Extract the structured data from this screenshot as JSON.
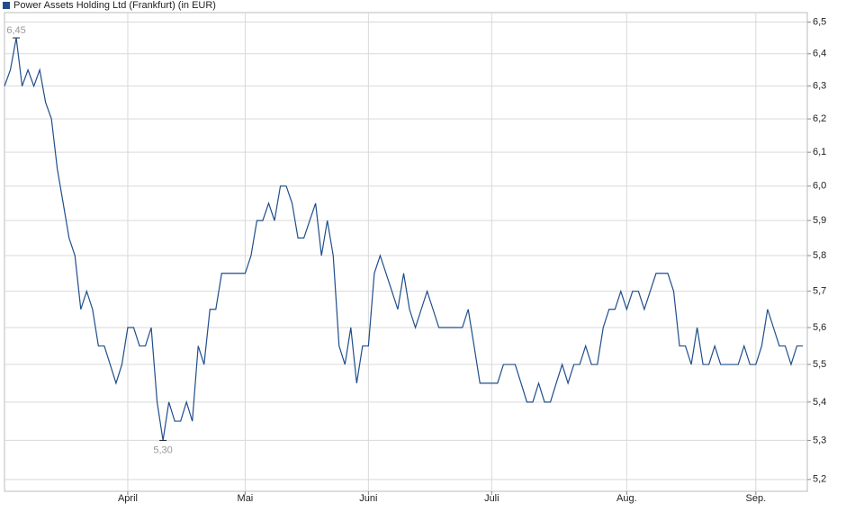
{
  "chart_data": {
    "type": "line",
    "log_scale": true,
    "grid": true,
    "legend": "top-left",
    "annotations": {
      "max": "6,45",
      "min": "5,30"
    },
    "ylim": [
      5.17,
      6.53
    ],
    "yticks": [
      {
        "value": 5.2,
        "label": "5,2"
      },
      {
        "value": 5.3,
        "label": "5,3"
      },
      {
        "value": 5.4,
        "label": "5,4"
      },
      {
        "value": 5.5,
        "label": "5,5"
      },
      {
        "value": 5.6,
        "label": "5,6"
      },
      {
        "value": 5.7,
        "label": "5,7"
      },
      {
        "value": 5.8,
        "label": "5,8"
      },
      {
        "value": 5.9,
        "label": "5,9"
      },
      {
        "value": 6.0,
        "label": "6,0"
      },
      {
        "value": 6.1,
        "label": "6,1"
      },
      {
        "value": 6.2,
        "label": "6,2"
      },
      {
        "value": 6.3,
        "label": "6,3"
      },
      {
        "value": 6.4,
        "label": "6,4"
      },
      {
        "value": 6.5,
        "label": "6,5"
      }
    ],
    "categories": [
      null,
      null,
      null,
      null,
      null,
      null,
      null,
      null,
      null,
      null,
      null,
      null,
      null,
      null,
      null,
      null,
      null,
      null,
      null,
      null,
      null,
      "April",
      null,
      null,
      null,
      null,
      null,
      null,
      null,
      null,
      null,
      null,
      null,
      null,
      null,
      null,
      null,
      null,
      null,
      null,
      null,
      "Mai",
      null,
      null,
      null,
      null,
      null,
      null,
      null,
      null,
      null,
      null,
      null,
      null,
      null,
      null,
      null,
      null,
      null,
      null,
      null,
      null,
      "Juni",
      null,
      null,
      null,
      null,
      null,
      null,
      null,
      null,
      null,
      null,
      null,
      null,
      null,
      null,
      null,
      null,
      null,
      null,
      null,
      null,
      "Juli",
      null,
      null,
      null,
      null,
      null,
      null,
      null,
      null,
      null,
      null,
      null,
      null,
      null,
      null,
      null,
      null,
      null,
      null,
      null,
      null,
      null,
      null,
      "Aug.",
      null,
      null,
      null,
      null,
      null,
      null,
      null,
      null,
      null,
      null,
      null,
      null,
      null,
      null,
      null,
      null,
      null,
      null,
      null,
      null,
      null,
      "Sep.",
      null,
      null,
      null,
      null,
      null,
      null,
      null,
      null
    ],
    "series": [
      {
        "name": "Power Assets Holding Ltd (Frankfurt) (in EUR)",
        "color": "#1f4e8c",
        "values": [
          6.3,
          6.35,
          6.45,
          6.3,
          6.35,
          6.3,
          6.35,
          6.25,
          6.2,
          6.05,
          5.95,
          5.85,
          5.8,
          5.65,
          5.7,
          5.65,
          5.55,
          5.55,
          5.5,
          5.45,
          5.5,
          5.6,
          5.6,
          5.55,
          5.55,
          5.6,
          5.4,
          5.3,
          5.4,
          5.35,
          5.35,
          5.4,
          5.35,
          5.55,
          5.5,
          5.65,
          5.65,
          5.75,
          5.75,
          5.75,
          5.75,
          5.75,
          5.8,
          5.9,
          5.9,
          5.95,
          5.9,
          6.0,
          6.0,
          5.95,
          5.85,
          5.85,
          5.9,
          5.95,
          5.8,
          5.9,
          5.8,
          5.55,
          5.5,
          5.6,
          5.45,
          5.55,
          5.55,
          5.75,
          5.8,
          5.75,
          5.7,
          5.65,
          5.75,
          5.65,
          5.6,
          5.65,
          5.7,
          5.65,
          5.6,
          5.6,
          5.6,
          5.6,
          5.6,
          5.65,
          5.55,
          5.45,
          5.45,
          5.45,
          5.45,
          5.5,
          5.5,
          5.5,
          5.45,
          5.4,
          5.4,
          5.45,
          5.4,
          5.4,
          5.45,
          5.5,
          5.45,
          5.5,
          5.5,
          5.55,
          5.5,
          5.5,
          5.6,
          5.65,
          5.65,
          5.7,
          5.65,
          5.7,
          5.7,
          5.65,
          5.7,
          5.75,
          5.75,
          5.75,
          5.7,
          5.55,
          5.55,
          5.5,
          5.6,
          5.5,
          5.5,
          5.55,
          5.5,
          5.5,
          5.5,
          5.5,
          5.55,
          5.5,
          5.5,
          5.55,
          5.65,
          5.6,
          5.55,
          5.55,
          5.5,
          5.55,
          5.55
        ]
      }
    ]
  }
}
